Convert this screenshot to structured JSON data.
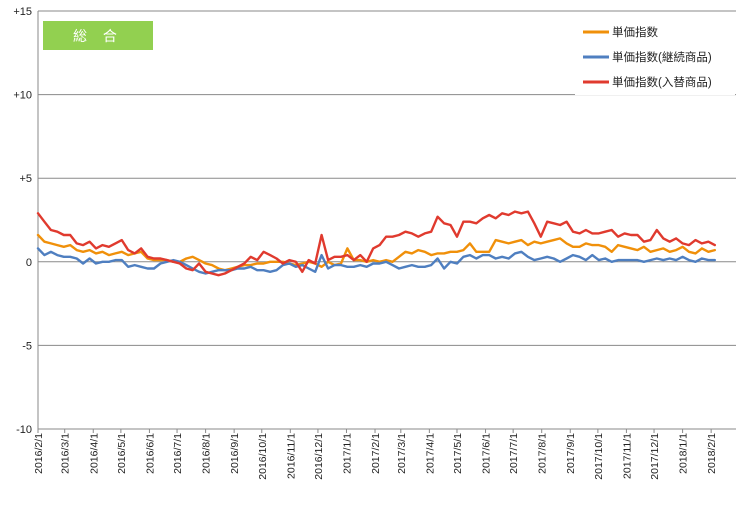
{
  "chart_data": {
    "type": "line",
    "badge": "総 合",
    "ylim": [
      -10,
      15
    ],
    "y_ticks": [
      {
        "value": 15,
        "label": "+15"
      },
      {
        "value": 10,
        "label": "+10"
      },
      {
        "value": 5,
        "label": "+5"
      },
      {
        "value": 0,
        "label": "0"
      },
      {
        "value": -5,
        "label": "-5"
      },
      {
        "value": -10,
        "label": "-10"
      }
    ],
    "x_tick_labels": [
      "2016/2/1",
      "2016/3/1",
      "2016/4/1",
      "2016/5/1",
      "2016/6/1",
      "2016/7/1",
      "2016/8/1",
      "2016/9/1",
      "2016/10/1",
      "2016/11/1",
      "2016/12/1",
      "2017/1/1",
      "2017/2/1",
      "2017/3/1",
      "2017/4/1",
      "2017/5/1",
      "2017/6/1",
      "2017/7/1",
      "2017/8/1",
      "2017/9/1",
      "2017/10/1",
      "2017/11/1",
      "2017/12/1",
      "2018/1/1",
      "2018/2/1"
    ],
    "x_start": "2016/2/1",
    "x_end": "2018/2/28",
    "point_interval_days": 7,
    "grid": "horizontal",
    "legend_position": "top-right",
    "series": [
      {
        "name": "単価指数",
        "color": "#f0900a",
        "values": [
          1.6,
          1.2,
          1.1,
          1.0,
          0.9,
          1.0,
          0.7,
          0.6,
          0.7,
          0.5,
          0.6,
          0.4,
          0.5,
          0.6,
          0.4,
          0.5,
          0.6,
          0.2,
          0.1,
          0.1,
          0.1,
          0.0,
          0.0,
          0.2,
          0.3,
          0.1,
          -0.1,
          -0.2,
          -0.4,
          -0.5,
          -0.4,
          -0.3,
          -0.2,
          -0.2,
          -0.1,
          -0.1,
          0.0,
          0.0,
          0.0,
          -0.1,
          -0.2,
          -0.1,
          0.0,
          -0.1,
          -0.3,
          0.0,
          -0.2,
          -0.1,
          0.8,
          0.1,
          0.1,
          0.0,
          0.1,
          0.0,
          0.1,
          0.0,
          0.3,
          0.6,
          0.5,
          0.7,
          0.6,
          0.4,
          0.5,
          0.5,
          0.6,
          0.6,
          0.7,
          1.1,
          0.6,
          0.6,
          0.6,
          1.3,
          1.2,
          1.1,
          1.2,
          1.3,
          1.0,
          1.2,
          1.1,
          1.2,
          1.3,
          1.4,
          1.1,
          0.9,
          0.9,
          1.1,
          1.0,
          1.0,
          0.9,
          0.6,
          1.0,
          0.9,
          0.8,
          0.7,
          0.9,
          0.6,
          0.7,
          0.8,
          0.6,
          0.7,
          0.9,
          0.6,
          0.5,
          0.8,
          0.6,
          0.7
        ]
      },
      {
        "name": "単価指数(継続商品)",
        "color": "#4f7fc0",
        "values": [
          0.8,
          0.4,
          0.6,
          0.4,
          0.3,
          0.3,
          0.2,
          -0.1,
          0.2,
          -0.1,
          0.0,
          0.0,
          0.1,
          0.1,
          -0.3,
          -0.2,
          -0.3,
          -0.4,
          -0.4,
          -0.1,
          0.0,
          0.1,
          0.0,
          -0.2,
          -0.4,
          -0.6,
          -0.7,
          -0.6,
          -0.5,
          -0.5,
          -0.5,
          -0.4,
          -0.4,
          -0.3,
          -0.5,
          -0.5,
          -0.6,
          -0.5,
          -0.2,
          -0.1,
          -0.3,
          -0.2,
          -0.4,
          -0.6,
          0.4,
          -0.4,
          -0.2,
          -0.2,
          -0.3,
          -0.3,
          -0.2,
          -0.3,
          -0.1,
          -0.1,
          0.0,
          -0.2,
          -0.4,
          -0.3,
          -0.2,
          -0.3,
          -0.3,
          -0.2,
          0.2,
          -0.4,
          0.0,
          -0.1,
          0.3,
          0.4,
          0.2,
          0.4,
          0.4,
          0.2,
          0.3,
          0.2,
          0.5,
          0.6,
          0.3,
          0.1,
          0.2,
          0.3,
          0.2,
          0.0,
          0.2,
          0.4,
          0.3,
          0.1,
          0.4,
          0.1,
          0.2,
          0.0,
          0.1,
          0.1,
          0.1,
          0.1,
          0.0,
          0.1,
          0.2,
          0.1,
          0.2,
          0.1,
          0.3,
          0.1,
          0.0,
          0.2,
          0.1,
          0.1
        ]
      },
      {
        "name": "単価指数(入替商品)",
        "color": "#e03a2e",
        "values": [
          2.9,
          2.4,
          1.9,
          1.8,
          1.6,
          1.6,
          1.1,
          1.0,
          1.2,
          0.8,
          1.0,
          0.9,
          1.1,
          1.3,
          0.7,
          0.5,
          0.8,
          0.3,
          0.2,
          0.2,
          0.1,
          0.0,
          -0.1,
          -0.4,
          -0.5,
          -0.1,
          -0.6,
          -0.7,
          -0.8,
          -0.7,
          -0.5,
          -0.3,
          -0.1,
          0.3,
          0.1,
          0.6,
          0.4,
          0.2,
          -0.1,
          0.1,
          0.0,
          -0.6,
          0.1,
          -0.1,
          1.6,
          0.1,
          0.3,
          0.3,
          0.4,
          0.1,
          0.4,
          0.0,
          0.8,
          1.0,
          1.5,
          1.5,
          1.6,
          1.8,
          1.7,
          1.5,
          1.7,
          1.8,
          2.7,
          2.3,
          2.2,
          1.5,
          2.4,
          2.4,
          2.3,
          2.6,
          2.8,
          2.6,
          2.9,
          2.8,
          3.0,
          2.9,
          3.0,
          2.3,
          1.5,
          2.4,
          2.3,
          2.2,
          2.4,
          1.8,
          1.7,
          1.9,
          1.7,
          1.7,
          1.8,
          1.9,
          1.5,
          1.7,
          1.6,
          1.6,
          1.2,
          1.3,
          1.9,
          1.4,
          1.2,
          1.4,
          1.1,
          1.0,
          1.3,
          1.1,
          1.2,
          1.0
        ]
      }
    ]
  }
}
